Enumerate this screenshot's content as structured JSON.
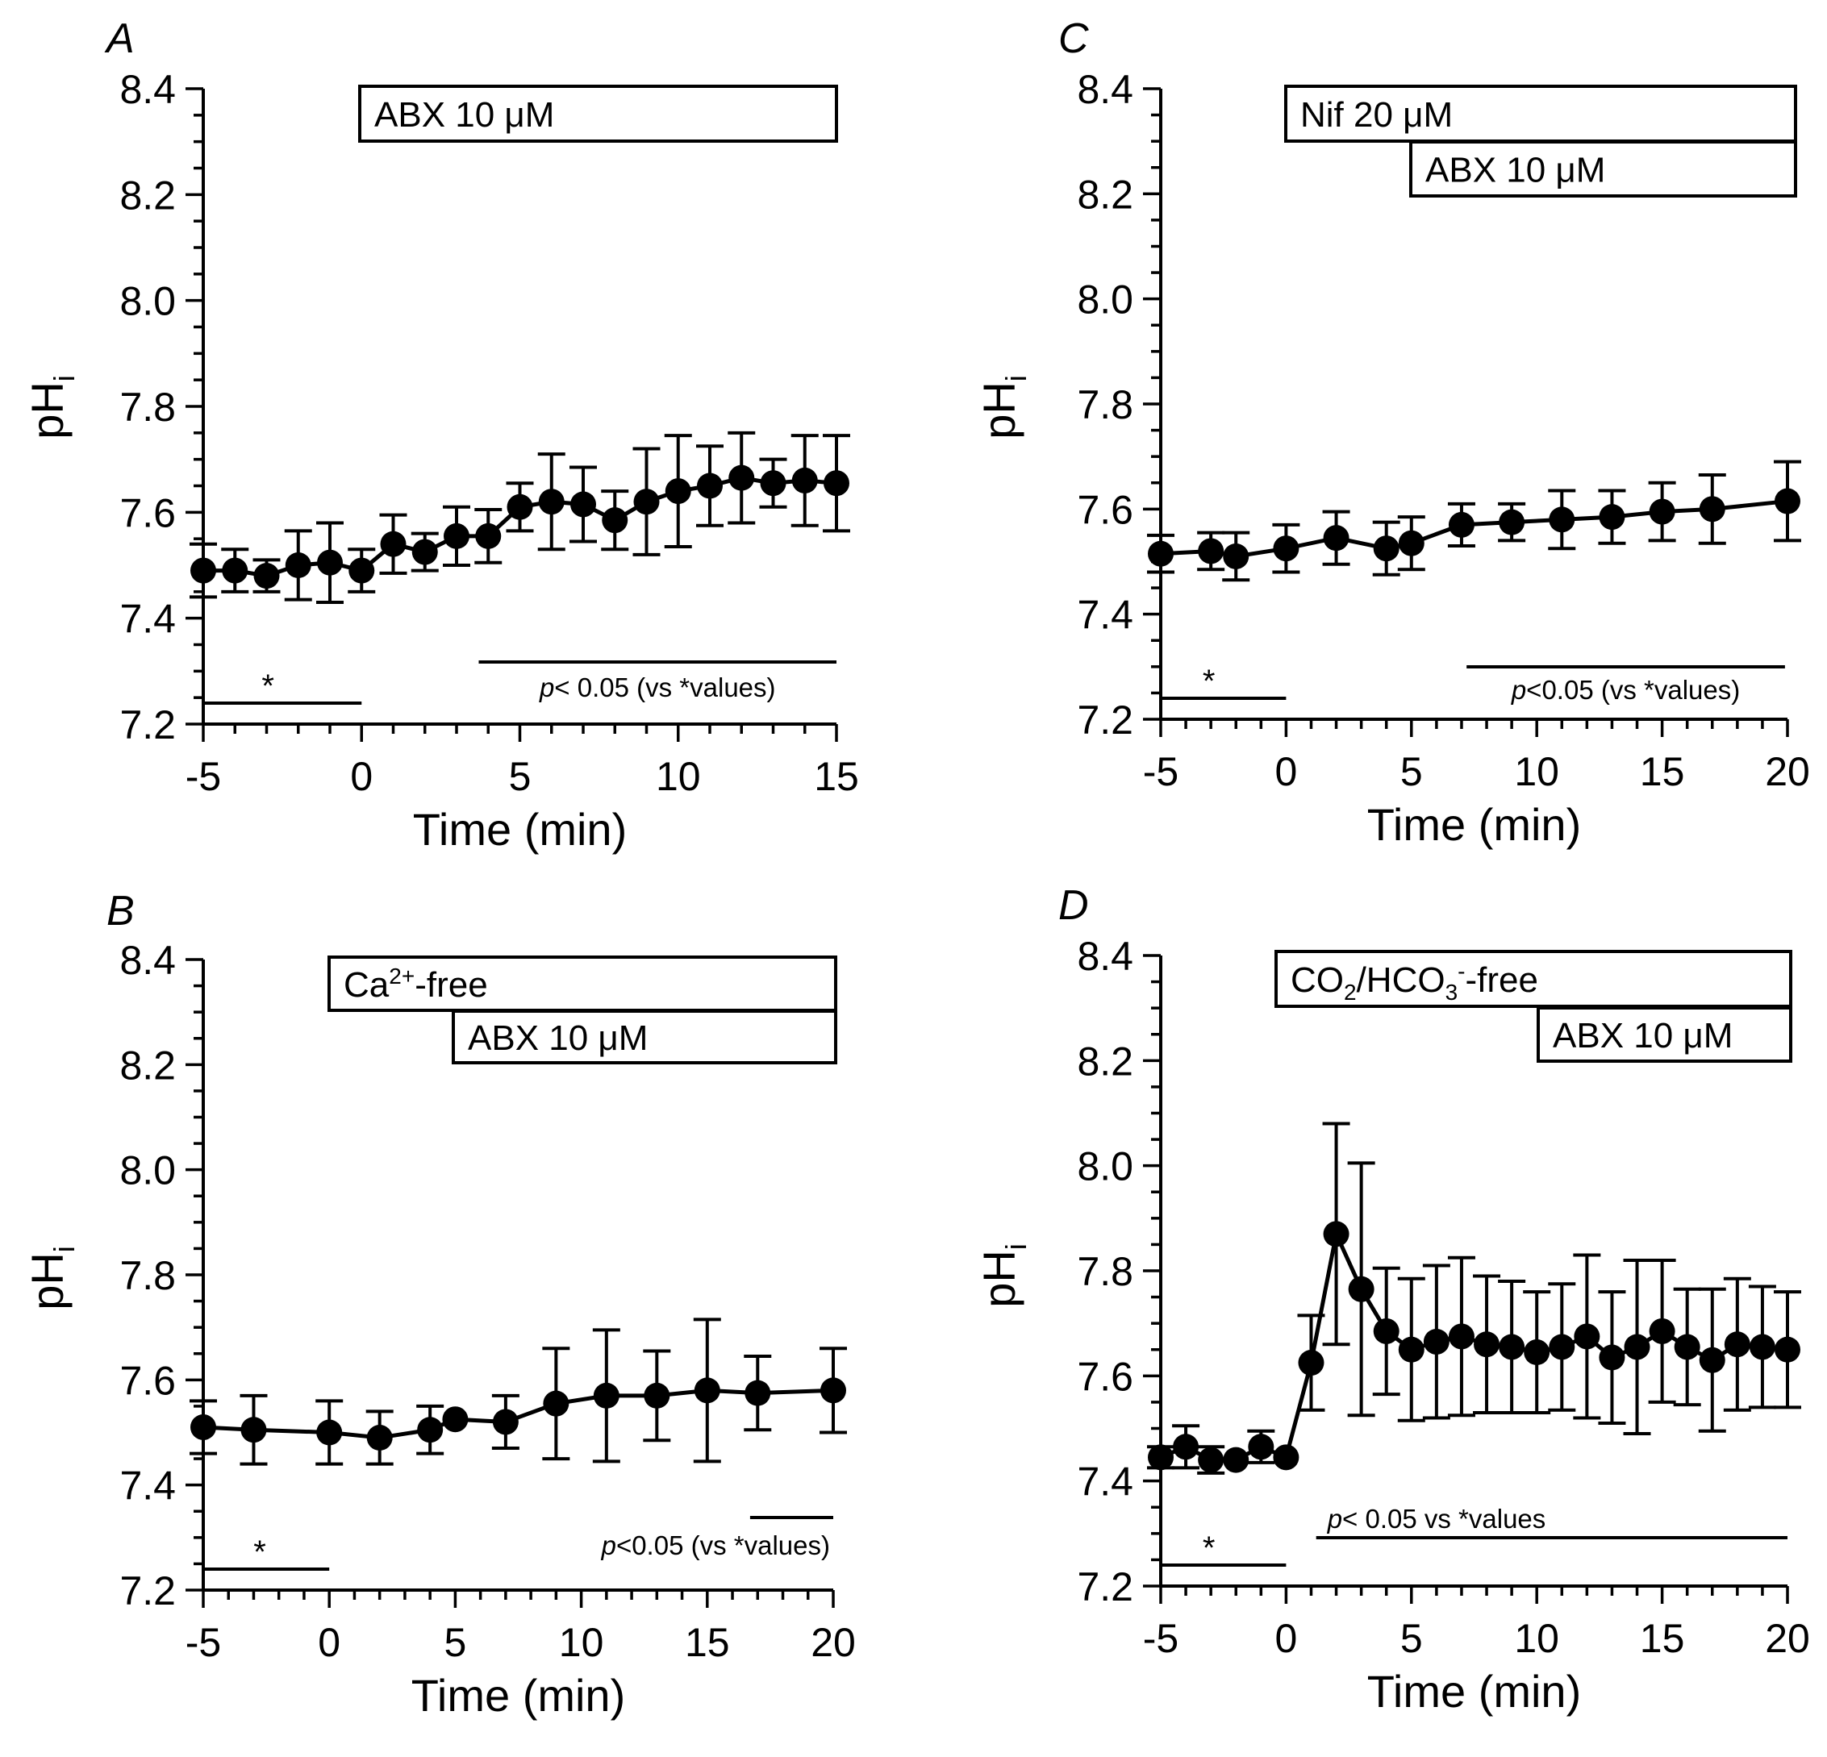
{
  "chart_data": [
    {
      "panel": "A",
      "type": "line",
      "xlabel": "Time (min)",
      "ylabel": "pH",
      "ylabel_sub": "i",
      "xlim": [
        -5,
        15
      ],
      "ylim": [
        7.2,
        8.4
      ],
      "xticks": [
        "-5",
        "0",
        "5",
        "10",
        "15"
      ],
      "yticks": [
        "7.2",
        "7.4",
        "7.6",
        "7.8",
        "8.0",
        "8.2",
        "8.4"
      ],
      "treatments": [
        {
          "label": "ABX 10 μM",
          "start": 0,
          "end": 15
        }
      ],
      "baseline_label": "*",
      "baseline_range": [
        -5,
        0
      ],
      "significance_label_italic": "p",
      "significance_label_rest": "< 0.05 (vs *values)",
      "significance_range": [
        3.7,
        15
      ],
      "x": [
        -5,
        -4,
        -3,
        -2,
        -1,
        0,
        1,
        2,
        3,
        4,
        5,
        6,
        7,
        8,
        9,
        10,
        11,
        12,
        13,
        14,
        15
      ],
      "y": [
        7.49,
        7.49,
        7.48,
        7.5,
        7.505,
        7.49,
        7.54,
        7.525,
        7.555,
        7.555,
        7.61,
        7.62,
        7.615,
        7.585,
        7.62,
        7.64,
        7.65,
        7.665,
        7.655,
        7.66,
        7.655
      ],
      "err": [
        0.05,
        0.04,
        0.03,
        0.065,
        0.075,
        0.04,
        0.055,
        0.035,
        0.055,
        0.05,
        0.045,
        0.09,
        0.07,
        0.055,
        0.1,
        0.105,
        0.075,
        0.085,
        0.045,
        0.085,
        0.09
      ]
    },
    {
      "panel": "B",
      "type": "line",
      "xlabel": "Time (min)",
      "ylabel": "pH",
      "ylabel_sub": "i",
      "xlim": [
        -5,
        20
      ],
      "ylim": [
        7.2,
        8.4
      ],
      "xticks": [
        "-5",
        "0",
        "5",
        "10",
        "15",
        "20"
      ],
      "yticks": [
        "7.2",
        "7.4",
        "7.6",
        "7.8",
        "8.0",
        "8.2",
        "8.4"
      ],
      "treatments": [
        {
          "label_main": "Ca",
          "label_sup": "2+",
          "label_tail": "-free",
          "start": 0,
          "end": 20
        },
        {
          "label": "ABX 10 μM",
          "start": 5,
          "end": 20
        }
      ],
      "baseline_label": "*",
      "baseline_range": [
        -5,
        0
      ],
      "significance_label_italic": "p",
      "significance_label_rest": "<0.05 (vs *values)",
      "significance_range": [
        16.7,
        20
      ],
      "x": [
        -5,
        -3,
        0,
        2,
        4,
        5,
        7,
        9,
        11,
        13,
        15,
        17,
        20
      ],
      "y": [
        7.51,
        7.505,
        7.5,
        7.49,
        7.505,
        7.525,
        7.52,
        7.555,
        7.57,
        7.57,
        7.58,
        7.575,
        7.58
      ],
      "err": [
        0.05,
        0.065,
        0.06,
        0.05,
        0.045,
        0.0,
        0.05,
        0.105,
        0.125,
        0.085,
        0.135,
        0.07,
        0.08
      ]
    },
    {
      "panel": "C",
      "type": "line",
      "xlabel": "Time (min)",
      "ylabel": "pH",
      "ylabel_sub": "i",
      "xlim": [
        -5,
        20
      ],
      "ylim": [
        7.2,
        8.4
      ],
      "xticks": [
        "-5",
        "0",
        "5",
        "10",
        "15",
        "20"
      ],
      "yticks": [
        "7.2",
        "7.4",
        "7.6",
        "7.8",
        "8.0",
        "8.2",
        "8.4"
      ],
      "treatments": [
        {
          "label": "Nif 20 μM",
          "start": 0,
          "end": 20
        },
        {
          "label": "ABX 10 μM",
          "start": 5,
          "end": 20
        }
      ],
      "baseline_label": "*",
      "baseline_range": [
        -5,
        0
      ],
      "significance_label_italic": "p",
      "significance_label_rest": "<0.05 (vs *values)",
      "significance_range": [
        7.2,
        19.9
      ],
      "x": [
        -5,
        -3,
        -2,
        0,
        2,
        4,
        5,
        7,
        9,
        11,
        13,
        15,
        17,
        20
      ],
      "y": [
        7.515,
        7.52,
        7.51,
        7.525,
        7.545,
        7.525,
        7.535,
        7.57,
        7.575,
        7.58,
        7.585,
        7.595,
        7.6,
        7.615
      ],
      "err": [
        0.035,
        0.035,
        0.045,
        0.045,
        0.05,
        0.05,
        0.05,
        0.04,
        0.035,
        0.055,
        0.05,
        0.055,
        0.065,
        0.075
      ]
    },
    {
      "panel": "D",
      "type": "line",
      "xlabel": "Time (min)",
      "ylabel": "pH",
      "ylabel_sub": "i",
      "xlim": [
        -5,
        20
      ],
      "ylim": [
        7.2,
        8.4
      ],
      "xticks": [
        "-5",
        "0",
        "5",
        "10",
        "15",
        "20"
      ],
      "yticks": [
        "7.2",
        "7.4",
        "7.6",
        "7.8",
        "8.0",
        "8.2",
        "8.4"
      ],
      "treatments": [
        {
          "label_main": "CO",
          "label_sub1": "2",
          "label_mid": "/HCO",
          "label_sub2": "3",
          "label_sup": "-",
          "label_tail": "-free",
          "start": 0,
          "end": 20
        },
        {
          "label": "ABX 10 μM",
          "start": 10,
          "end": 20
        }
      ],
      "baseline_label": "*",
      "baseline_range": [
        -5,
        0
      ],
      "significance_label_italic": "p",
      "significance_label_rest": "< 0.05 vs *values",
      "significance_range": [
        1.2,
        20
      ],
      "x": [
        -5,
        -4,
        -3,
        -2,
        -1,
        0,
        1,
        2,
        3,
        4,
        5,
        6,
        7,
        8,
        9,
        10,
        11,
        12,
        13,
        14,
        15,
        16,
        17,
        18,
        19,
        20
      ],
      "y": [
        7.445,
        7.465,
        7.44,
        7.44,
        7.465,
        7.445,
        7.625,
        7.87,
        7.765,
        7.685,
        7.65,
        7.665,
        7.675,
        7.66,
        7.655,
        7.645,
        7.655,
        7.675,
        7.635,
        7.655,
        7.685,
        7.655,
        7.63,
        7.66,
        7.655,
        7.65
      ],
      "err": [
        0.02,
        0.04,
        0.025,
        0.0,
        0.03,
        0.0,
        0.09,
        0.21,
        0.24,
        0.12,
        0.135,
        0.145,
        0.15,
        0.13,
        0.125,
        0.115,
        0.12,
        0.155,
        0.125,
        0.165,
        0.135,
        0.11,
        0.135,
        0.125,
        0.115,
        0.11
      ]
    }
  ]
}
